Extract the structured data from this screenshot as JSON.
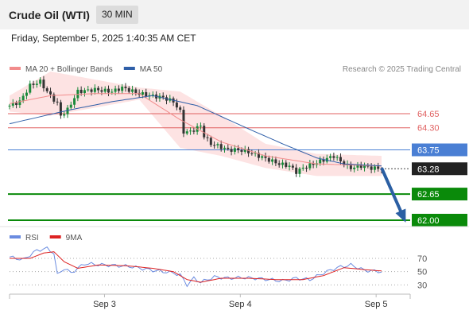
{
  "header": {
    "instrument": "Crude Oil (WTI)",
    "interval": "30 MIN"
  },
  "timestamp": "Friday, September 5, 2025 1:40:35 AM CET",
  "chart_data": [
    {
      "type": "candlestick",
      "title": "Crude Oil (WTI)",
      "legend": [
        {
          "name": "MA 20 + Bollinger Bands",
          "color": "#f28c8c"
        },
        {
          "name": "MA 50",
          "color": "#2f5fa8"
        }
      ],
      "legend_position": "top-left",
      "credit": "Research © 2025 Trading Central",
      "ylim": [
        61.9,
        65.6
      ],
      "x_ticks": [
        {
          "label": "Sep 3",
          "t": 0.237
        },
        {
          "label": "Sep 4",
          "t": 0.576
        },
        {
          "label": "Sep 5",
          "t": 0.915
        }
      ],
      "levels": [
        {
          "label": "64.65",
          "value": 64.65,
          "style": "resistance",
          "color": "#e06060"
        },
        {
          "label": "64.30",
          "value": 64.3,
          "style": "resistance",
          "color": "#e06060"
        },
        {
          "label": "63.75",
          "value": 63.75,
          "style": "pivot",
          "color": "#4a7fd4"
        },
        {
          "label": "62.65",
          "value": 62.65,
          "style": "support",
          "color": "#0a8a0a"
        },
        {
          "label": "62.00",
          "value": 62.0,
          "style": "support",
          "color": "#0a8a0a"
        }
      ],
      "last_price": {
        "label": "63.28",
        "value": 63.28
      },
      "forecast_arrow": {
        "from": 63.3,
        "to": 62.05,
        "color": "#2b5fa3"
      },
      "close_anchors": [
        [
          0,
          64.85
        ],
        [
          3,
          64.95
        ],
        [
          6,
          65.35
        ],
        [
          9,
          65.45
        ],
        [
          11,
          65.2
        ],
        [
          14,
          64.9
        ],
        [
          15,
          64.6
        ],
        [
          17,
          64.75
        ],
        [
          20,
          65.2
        ],
        [
          25,
          65.25
        ],
        [
          30,
          65.2
        ],
        [
          33,
          65.3
        ],
        [
          38,
          65.15
        ],
        [
          45,
          65.05
        ],
        [
          48,
          64.95
        ],
        [
          50,
          64.7
        ],
        [
          51,
          64.2
        ],
        [
          53,
          64.2
        ],
        [
          56,
          64.35
        ],
        [
          57,
          64.1
        ],
        [
          59,
          63.9
        ],
        [
          61,
          63.85
        ],
        [
          64,
          63.75
        ],
        [
          67,
          63.75
        ],
        [
          70,
          63.7
        ],
        [
          73,
          63.6
        ],
        [
          76,
          63.5
        ],
        [
          79,
          63.4
        ],
        [
          82,
          63.35
        ],
        [
          84,
          63.2
        ],
        [
          86,
          63.3
        ],
        [
          89,
          63.4
        ],
        [
          92,
          63.5
        ],
        [
          95,
          63.6
        ],
        [
          98,
          63.4
        ],
        [
          100,
          63.3
        ],
        [
          103,
          63.35
        ],
        [
          106,
          63.3
        ],
        [
          109,
          63.28
        ]
      ],
      "ma20_bollinger": {
        "anchors": [
          [
            0,
            64.9
          ],
          [
            12,
            65.1
          ],
          [
            25,
            65.15
          ],
          [
            38,
            65.15
          ],
          [
            50,
            64.5
          ],
          [
            62,
            63.95
          ],
          [
            75,
            63.6
          ],
          [
            90,
            63.4
          ],
          [
            109,
            63.35
          ]
        ],
        "upper": [
          [
            0,
            65.1
          ],
          [
            12,
            65.7
          ],
          [
            25,
            65.5
          ],
          [
            38,
            65.3
          ],
          [
            50,
            65.2
          ],
          [
            62,
            64.6
          ],
          [
            75,
            63.9
          ],
          [
            90,
            63.65
          ],
          [
            109,
            63.6
          ]
        ],
        "lower": [
          [
            0,
            64.7
          ],
          [
            12,
            64.6
          ],
          [
            25,
            64.8
          ],
          [
            38,
            65.0
          ],
          [
            50,
            63.8
          ],
          [
            62,
            63.6
          ],
          [
            75,
            63.3
          ],
          [
            90,
            63.1
          ],
          [
            109,
            63.1
          ]
        ]
      },
      "ma50": [
        [
          0,
          64.4
        ],
        [
          18,
          64.75
        ],
        [
          30,
          64.95
        ],
        [
          42,
          65.1
        ],
        [
          55,
          64.85
        ],
        [
          68,
          64.35
        ],
        [
          80,
          63.9
        ],
        [
          90,
          63.55
        ],
        [
          98,
          63.4
        ],
        [
          109,
          63.35
        ]
      ]
    },
    {
      "type": "line",
      "title": "RSI",
      "legend": [
        {
          "name": "RSI",
          "color": "#6a8be0"
        },
        {
          "name": "9MA",
          "color": "#dd2222"
        }
      ],
      "ylim": [
        22,
        88
      ],
      "y_ticks": [
        70,
        50,
        30
      ],
      "series": [
        {
          "name": "RSI",
          "anchors": [
            [
              0,
              72
            ],
            [
              4,
              68
            ],
            [
              8,
              82
            ],
            [
              11,
              85
            ],
            [
              13,
              78
            ],
            [
              14,
              45
            ],
            [
              16,
              55
            ],
            [
              18,
              48
            ],
            [
              22,
              62
            ],
            [
              28,
              60
            ],
            [
              35,
              58
            ],
            [
              42,
              52
            ],
            [
              48,
              48
            ],
            [
              50,
              45
            ],
            [
              52,
              30
            ],
            [
              54,
              40
            ],
            [
              56,
              34
            ],
            [
              60,
              42
            ],
            [
              64,
              40
            ],
            [
              68,
              41
            ],
            [
              72,
              40
            ],
            [
              76,
              38
            ],
            [
              80,
              36
            ],
            [
              84,
              40
            ],
            [
              88,
              38
            ],
            [
              92,
              48
            ],
            [
              96,
              56
            ],
            [
              100,
              60
            ],
            [
              104,
              52
            ],
            [
              109,
              50
            ]
          ]
        },
        {
          "name": "9MA",
          "anchors": [
            [
              0,
              70
            ],
            [
              6,
              70
            ],
            [
              10,
              78
            ],
            [
              13,
              80
            ],
            [
              16,
              65
            ],
            [
              20,
              55
            ],
            [
              26,
              60
            ],
            [
              34,
              59
            ],
            [
              42,
              55
            ],
            [
              48,
              50
            ],
            [
              52,
              38
            ],
            [
              56,
              34
            ],
            [
              62,
              40
            ],
            [
              70,
              40
            ],
            [
              78,
              38
            ],
            [
              86,
              38
            ],
            [
              92,
              44
            ],
            [
              98,
              56
            ],
            [
              104,
              53
            ],
            [
              109,
              51
            ]
          ]
        }
      ]
    }
  ]
}
